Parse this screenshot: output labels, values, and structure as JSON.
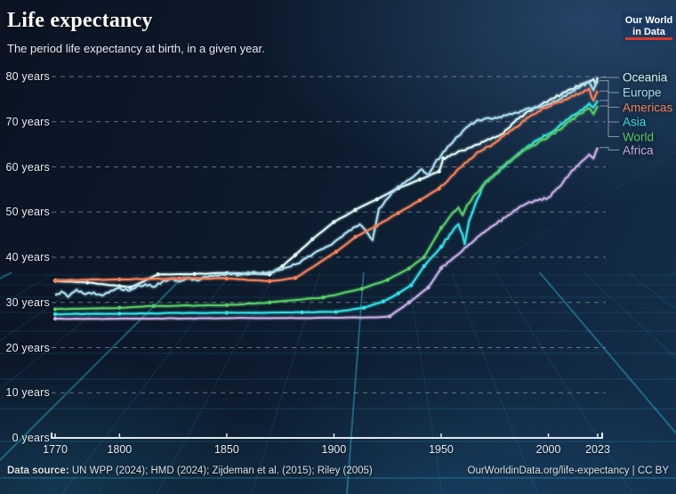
{
  "header": {
    "title": "Life expectancy",
    "subtitle": "The period life expectancy at birth, in a given year."
  },
  "logo": {
    "line1": "Our World",
    "line2": "in Data",
    "bg_color": "#1c3a60",
    "accent_color": "#dd382c"
  },
  "footer": {
    "source_label": "Data source:",
    "source_text": " UN WPP (2024); HMD (2024); Zijdeman et al. (2015); Riley (2005)",
    "right_text": "OurWorldinData.org/life-expectancy | CC BY"
  },
  "chart_data": {
    "type": "line",
    "title": "Life expectancy",
    "xlabel": "",
    "ylabel": "",
    "xlim": [
      1770,
      2023
    ],
    "ylim": [
      0,
      80
    ],
    "x_ticks": [
      1770,
      1800,
      1850,
      1900,
      1950,
      2000,
      2023
    ],
    "y_ticks": [
      0,
      10,
      20,
      30,
      40,
      50,
      60,
      70,
      80
    ],
    "y_tick_suffix": " years",
    "grid": "horizontal-dashed",
    "legend_position": "right",
    "background_style": "dark neon perspective grid",
    "grid_glow_color": "#35c8f0",
    "series": [
      {
        "name": "Oceania",
        "color": "#d9f5f1",
        "points": [
          [
            1770,
            34.8
          ],
          [
            1785,
            34.4
          ],
          [
            1800,
            33.6
          ],
          [
            1805,
            33.3
          ],
          [
            1818,
            36.2
          ],
          [
            1835,
            36.3
          ],
          [
            1850,
            36.5
          ],
          [
            1860,
            36.4
          ],
          [
            1870,
            36.2
          ],
          [
            1876,
            38.0
          ],
          [
            1882,
            40.5
          ],
          [
            1890,
            44.0
          ],
          [
            1900,
            47.8
          ],
          [
            1910,
            50.5
          ],
          [
            1920,
            52.8
          ],
          [
            1930,
            55.3
          ],
          [
            1940,
            57.2
          ],
          [
            1949,
            59.0
          ],
          [
            1951,
            61.9
          ],
          [
            1956,
            62.8
          ],
          [
            1962,
            64.0
          ],
          [
            1970,
            65.6
          ],
          [
            1978,
            67.2
          ],
          [
            1986,
            70.7
          ],
          [
            1993,
            73.0
          ],
          [
            2000,
            74.6
          ],
          [
            2008,
            76.6
          ],
          [
            2015,
            78.2
          ],
          [
            2019,
            78.9
          ],
          [
            2021,
            79.4
          ],
          [
            2022,
            78.4
          ],
          [
            2023,
            79.8
          ]
        ]
      },
      {
        "name": "Europe",
        "color": "#a9dcea",
        "points": [
          [
            1770,
            31.6
          ],
          [
            1773,
            32.4
          ],
          [
            1776,
            31.2
          ],
          [
            1780,
            32.8
          ],
          [
            1784,
            31.8
          ],
          [
            1788,
            32.2
          ],
          [
            1792,
            31.5
          ],
          [
            1796,
            32.6
          ],
          [
            1800,
            33.2
          ],
          [
            1804,
            32.6
          ],
          [
            1808,
            33.5
          ],
          [
            1812,
            34.0
          ],
          [
            1816,
            33.4
          ],
          [
            1820,
            34.6
          ],
          [
            1824,
            35.2
          ],
          [
            1828,
            34.6
          ],
          [
            1832,
            35.4
          ],
          [
            1836,
            34.9
          ],
          [
            1840,
            35.7
          ],
          [
            1845,
            36.0
          ],
          [
            1850,
            36.3
          ],
          [
            1856,
            36.1
          ],
          [
            1862,
            36.7
          ],
          [
            1868,
            36.5
          ],
          [
            1875,
            37.2
          ],
          [
            1882,
            38.4
          ],
          [
            1890,
            40.6
          ],
          [
            1900,
            43.3
          ],
          [
            1906,
            45.5
          ],
          [
            1912,
            47.3
          ],
          [
            1915,
            45.8
          ],
          [
            1918,
            43.8
          ],
          [
            1921,
            50.8
          ],
          [
            1925,
            53.0
          ],
          [
            1929,
            55.2
          ],
          [
            1933,
            56.5
          ],
          [
            1937,
            57.8
          ],
          [
            1941,
            59.5
          ],
          [
            1944,
            58.2
          ],
          [
            1947,
            60.8
          ],
          [
            1950,
            62.5
          ],
          [
            1954,
            64.8
          ],
          [
            1958,
            66.8
          ],
          [
            1962,
            68.8
          ],
          [
            1966,
            70.0
          ],
          [
            1970,
            70.6
          ],
          [
            1975,
            70.9
          ],
          [
            1980,
            71.4
          ],
          [
            1985,
            72.0
          ],
          [
            1990,
            72.9
          ],
          [
            1995,
            73.2
          ],
          [
            2000,
            73.9
          ],
          [
            2005,
            74.9
          ],
          [
            2010,
            76.4
          ],
          [
            2015,
            77.8
          ],
          [
            2019,
            78.7
          ],
          [
            2020,
            77.9
          ],
          [
            2021,
            77.0
          ],
          [
            2022,
            78.2
          ],
          [
            2023,
            79.1
          ]
        ]
      },
      {
        "name": "Americas",
        "color": "#f2815a",
        "points": [
          [
            1770,
            34.9
          ],
          [
            1800,
            35.1
          ],
          [
            1828,
            35.3
          ],
          [
            1850,
            35.3
          ],
          [
            1870,
            34.7
          ],
          [
            1882,
            35.4
          ],
          [
            1901,
            41.2
          ],
          [
            1910,
            44.5
          ],
          [
            1920,
            47.0
          ],
          [
            1930,
            49.8
          ],
          [
            1940,
            52.6
          ],
          [
            1949,
            55.2
          ],
          [
            1955,
            58.0
          ],
          [
            1960,
            60.3
          ],
          [
            1966,
            62.8
          ],
          [
            1970,
            63.9
          ],
          [
            1975,
            65.3
          ],
          [
            1980,
            67.3
          ],
          [
            1985,
            68.8
          ],
          [
            1990,
            70.8
          ],
          [
            1995,
            72.2
          ],
          [
            2000,
            73.3
          ],
          [
            2005,
            74.4
          ],
          [
            2010,
            75.4
          ],
          [
            2015,
            76.4
          ],
          [
            2019,
            77.3
          ],
          [
            2020,
            75.6
          ],
          [
            2021,
            74.7
          ],
          [
            2022,
            75.9
          ],
          [
            2023,
            76.8
          ]
        ]
      },
      {
        "name": "Asia",
        "color": "#31dde2",
        "points": [
          [
            1770,
            27.4
          ],
          [
            1800,
            27.5
          ],
          [
            1850,
            27.7
          ],
          [
            1885,
            27.8
          ],
          [
            1901,
            27.9
          ],
          [
            1914,
            28.8
          ],
          [
            1923,
            30.2
          ],
          [
            1930,
            32.0
          ],
          [
            1936,
            33.8
          ],
          [
            1942,
            38.0
          ],
          [
            1950,
            42.3
          ],
          [
            1954,
            45.0
          ],
          [
            1958,
            47.3
          ],
          [
            1960,
            45.0
          ],
          [
            1961,
            42.9
          ],
          [
            1963,
            48.0
          ],
          [
            1967,
            53.0
          ],
          [
            1970,
            56.2
          ],
          [
            1975,
            58.3
          ],
          [
            1980,
            60.4
          ],
          [
            1985,
            62.4
          ],
          [
            1990,
            64.4
          ],
          [
            1995,
            66.0
          ],
          [
            2000,
            67.3
          ],
          [
            2005,
            69.0
          ],
          [
            2010,
            70.9
          ],
          [
            2015,
            72.5
          ],
          [
            2019,
            74.0
          ],
          [
            2021,
            73.2
          ],
          [
            2023,
            74.7
          ]
        ]
      },
      {
        "name": "World",
        "color": "#57ca65",
        "points": [
          [
            1770,
            28.5
          ],
          [
            1800,
            28.8
          ],
          [
            1816,
            29.2
          ],
          [
            1850,
            29.4
          ],
          [
            1870,
            30.0
          ],
          [
            1895,
            31.1
          ],
          [
            1913,
            33.0
          ],
          [
            1925,
            35.0
          ],
          [
            1935,
            37.5
          ],
          [
            1942,
            40.0
          ],
          [
            1950,
            46.5
          ],
          [
            1955,
            49.6
          ],
          [
            1958,
            51.0
          ],
          [
            1960,
            49.3
          ],
          [
            1962,
            51.5
          ],
          [
            1966,
            54.0
          ],
          [
            1970,
            56.1
          ],
          [
            1975,
            58.4
          ],
          [
            1980,
            60.6
          ],
          [
            1985,
            62.4
          ],
          [
            1990,
            64.1
          ],
          [
            1995,
            65.3
          ],
          [
            2000,
            66.6
          ],
          [
            2005,
            68.2
          ],
          [
            2010,
            70.1
          ],
          [
            2015,
            71.8
          ],
          [
            2019,
            73.0
          ],
          [
            2020,
            72.4
          ],
          [
            2021,
            71.7
          ],
          [
            2022,
            72.6
          ],
          [
            2023,
            73.5
          ]
        ]
      },
      {
        "name": "Africa",
        "color": "#c2abe2",
        "points": [
          [
            1770,
            26.4
          ],
          [
            1800,
            26.4
          ],
          [
            1850,
            26.5
          ],
          [
            1900,
            26.6
          ],
          [
            1920,
            26.7
          ],
          [
            1926,
            26.9
          ],
          [
            1935,
            30.0
          ],
          [
            1944,
            33.3
          ],
          [
            1950,
            37.6
          ],
          [
            1955,
            39.5
          ],
          [
            1960,
            41.5
          ],
          [
            1965,
            43.5
          ],
          [
            1970,
            45.5
          ],
          [
            1975,
            47.2
          ],
          [
            1980,
            48.8
          ],
          [
            1985,
            50.5
          ],
          [
            1990,
            51.9
          ],
          [
            1995,
            52.6
          ],
          [
            2000,
            53.2
          ],
          [
            2005,
            55.5
          ],
          [
            2010,
            58.5
          ],
          [
            2015,
            61.0
          ],
          [
            2019,
            62.7
          ],
          [
            2020,
            62.3
          ],
          [
            2021,
            61.9
          ],
          [
            2022,
            63.2
          ],
          [
            2023,
            64.3
          ]
        ]
      }
    ]
  }
}
